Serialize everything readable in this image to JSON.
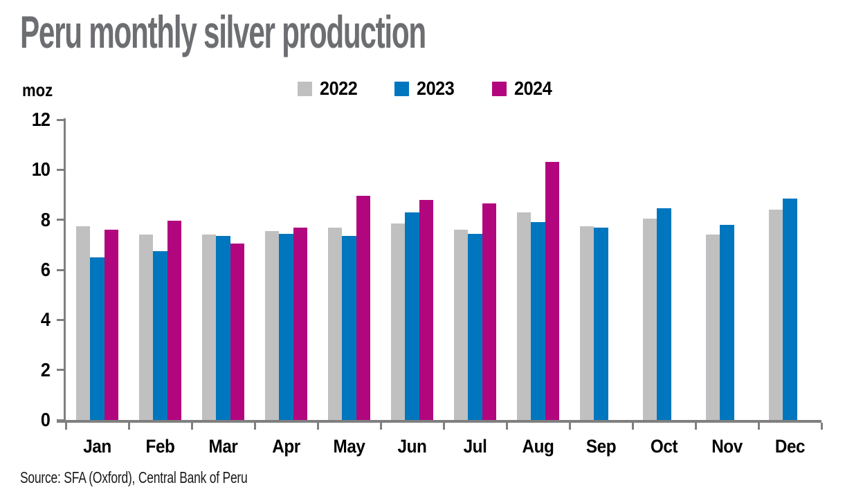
{
  "title": "Peru monthly silver production",
  "source": "Source: SFA (Oxford), Central Bank of Peru",
  "colors": {
    "title_gray": "#6d6e71",
    "axis_gray": "#7f7f7f",
    "series_2022": "#bfc0bf",
    "series_2023": "#0076be",
    "series_2024": "#b2067e"
  },
  "chart_data": {
    "type": "bar",
    "title": "Peru monthly silver production",
    "ylabel": "moz",
    "xlabel": "",
    "ylim": [
      0,
      12
    ],
    "yticks": [
      0,
      2,
      4,
      6,
      8,
      10,
      12
    ],
    "grid": false,
    "legend_position": "top",
    "categories": [
      "Jan",
      "Feb",
      "Mar",
      "Apr",
      "May",
      "Jun",
      "Jul",
      "Aug",
      "Sep",
      "Oct",
      "Nov",
      "Dec"
    ],
    "series": [
      {
        "name": "2022",
        "color": "#bfc0bf",
        "values": [
          7.75,
          7.4,
          7.4,
          7.55,
          7.7,
          7.85,
          7.6,
          8.3,
          7.75,
          8.05,
          7.4,
          8.4
        ]
      },
      {
        "name": "2023",
        "color": "#0076be",
        "values": [
          6.5,
          6.75,
          7.35,
          7.45,
          7.35,
          8.3,
          7.45,
          7.9,
          7.7,
          8.45,
          7.8,
          8.85
        ]
      },
      {
        "name": "2024",
        "color": "#b2067e",
        "values": [
          7.6,
          7.95,
          7.05,
          7.7,
          8.95,
          8.8,
          8.65,
          10.3,
          null,
          null,
          null,
          null
        ]
      }
    ]
  }
}
